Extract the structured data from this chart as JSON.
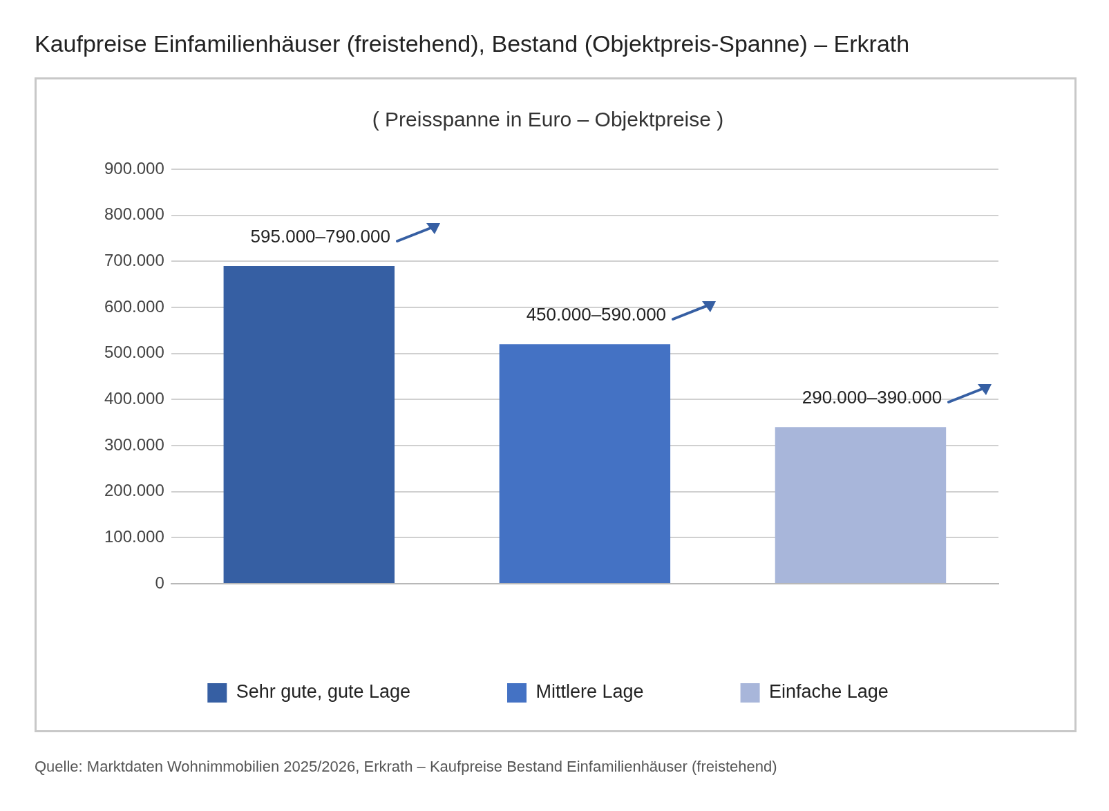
{
  "chart_data": {
    "type": "bar",
    "title": "Kaufpreise Einfamilienhäuser (freistehend), Bestand (Objektpreis-Spanne) – Erkrath",
    "subtitle": "( Preisspanne in Euro – Objektpreise )",
    "categories": [
      null,
      null,
      null
    ],
    "series": [
      {
        "name": "Sehr gute, gute Lage",
        "color": "#365fa3",
        "values": [
          690000,
          null,
          null
        ],
        "value_labels": [
          "595.000–790.000",
          null,
          null
        ]
      },
      {
        "name": "Mittlere Lage",
        "color": "#4472c4",
        "values": [
          null,
          520000,
          null
        ],
        "value_labels": [
          null,
          "450.000–590.000",
          null
        ]
      },
      {
        "name": "Einfache Lage",
        "color": "#a8b6da",
        "values": [
          null,
          null,
          340000
        ],
        "value_labels": [
          null,
          null,
          "290.000–390.000"
        ]
      }
    ],
    "ylim": [
      0,
      900000
    ],
    "yticks": [
      0,
      {
        "value": 100000,
        "label": "100.000"
      },
      {
        "value": 200000,
        "label": "200.000"
      },
      {
        "value": 300000,
        "label": "300.000"
      },
      {
        "value": 400000,
        "label": "400.000"
      },
      {
        "value": 500000,
        "label": "500.000"
      },
      {
        "value": 600000,
        "label": "600.000"
      },
      {
        "value": 700000,
        "label": "700.000"
      },
      {
        "value": 800000,
        "label": "800.000"
      },
      {
        "value": 900000,
        "label": "900.000"
      }
    ],
    "grid": "y",
    "legend": "bottom",
    "annotations": [
      "Quelle: Marktdaten Wohnimmobilien 2025/2026, Erkrath – Kaufpreise Bestand Einfamilienhäuser (freistehend)"
    ]
  }
}
